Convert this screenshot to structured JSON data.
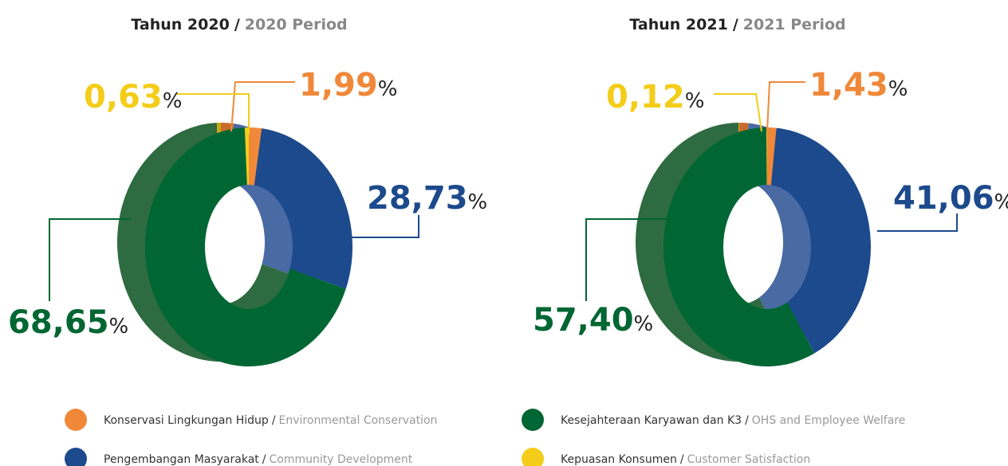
{
  "separator": "/",
  "legend": [
    {
      "name": "Konservasi Lingkungan Hidup",
      "translation": "Environmental Conservation",
      "color": "#f0883a",
      "side_color": "#c86c2c"
    },
    {
      "name": "Pengembangan Masyarakat",
      "translation": "Community Development",
      "color": "#1c4a8c",
      "side_color": "#4a6aa4"
    },
    {
      "name": "Kesejahteraan Karyawan dan K3",
      "translation": "OHS and Employee Welfare",
      "color": "#006633",
      "side_color": "#2e6b40"
    },
    {
      "name": "Kepuasan Konsumen",
      "translation": "Customer Satisfaction",
      "color": "#f3cd1a",
      "side_color": "#c9a812"
    }
  ],
  "chart_data": [
    {
      "type": "pie",
      "title": "Tahun 2020",
      "subtitle": "2020 Period",
      "unit": "%",
      "values": [
        1.99,
        28.73,
        68.65,
        0.63
      ],
      "value_labels": [
        "1,99",
        "28,73",
        "68,65",
        "0,63"
      ]
    },
    {
      "type": "pie",
      "title": "Tahun 2021",
      "subtitle": "2021 Period",
      "unit": "%",
      "values": [
        1.43,
        41.06,
        57.4,
        0.12
      ],
      "value_labels": [
        "1,43",
        "41,06",
        "57,40",
        "0,12"
      ]
    }
  ]
}
